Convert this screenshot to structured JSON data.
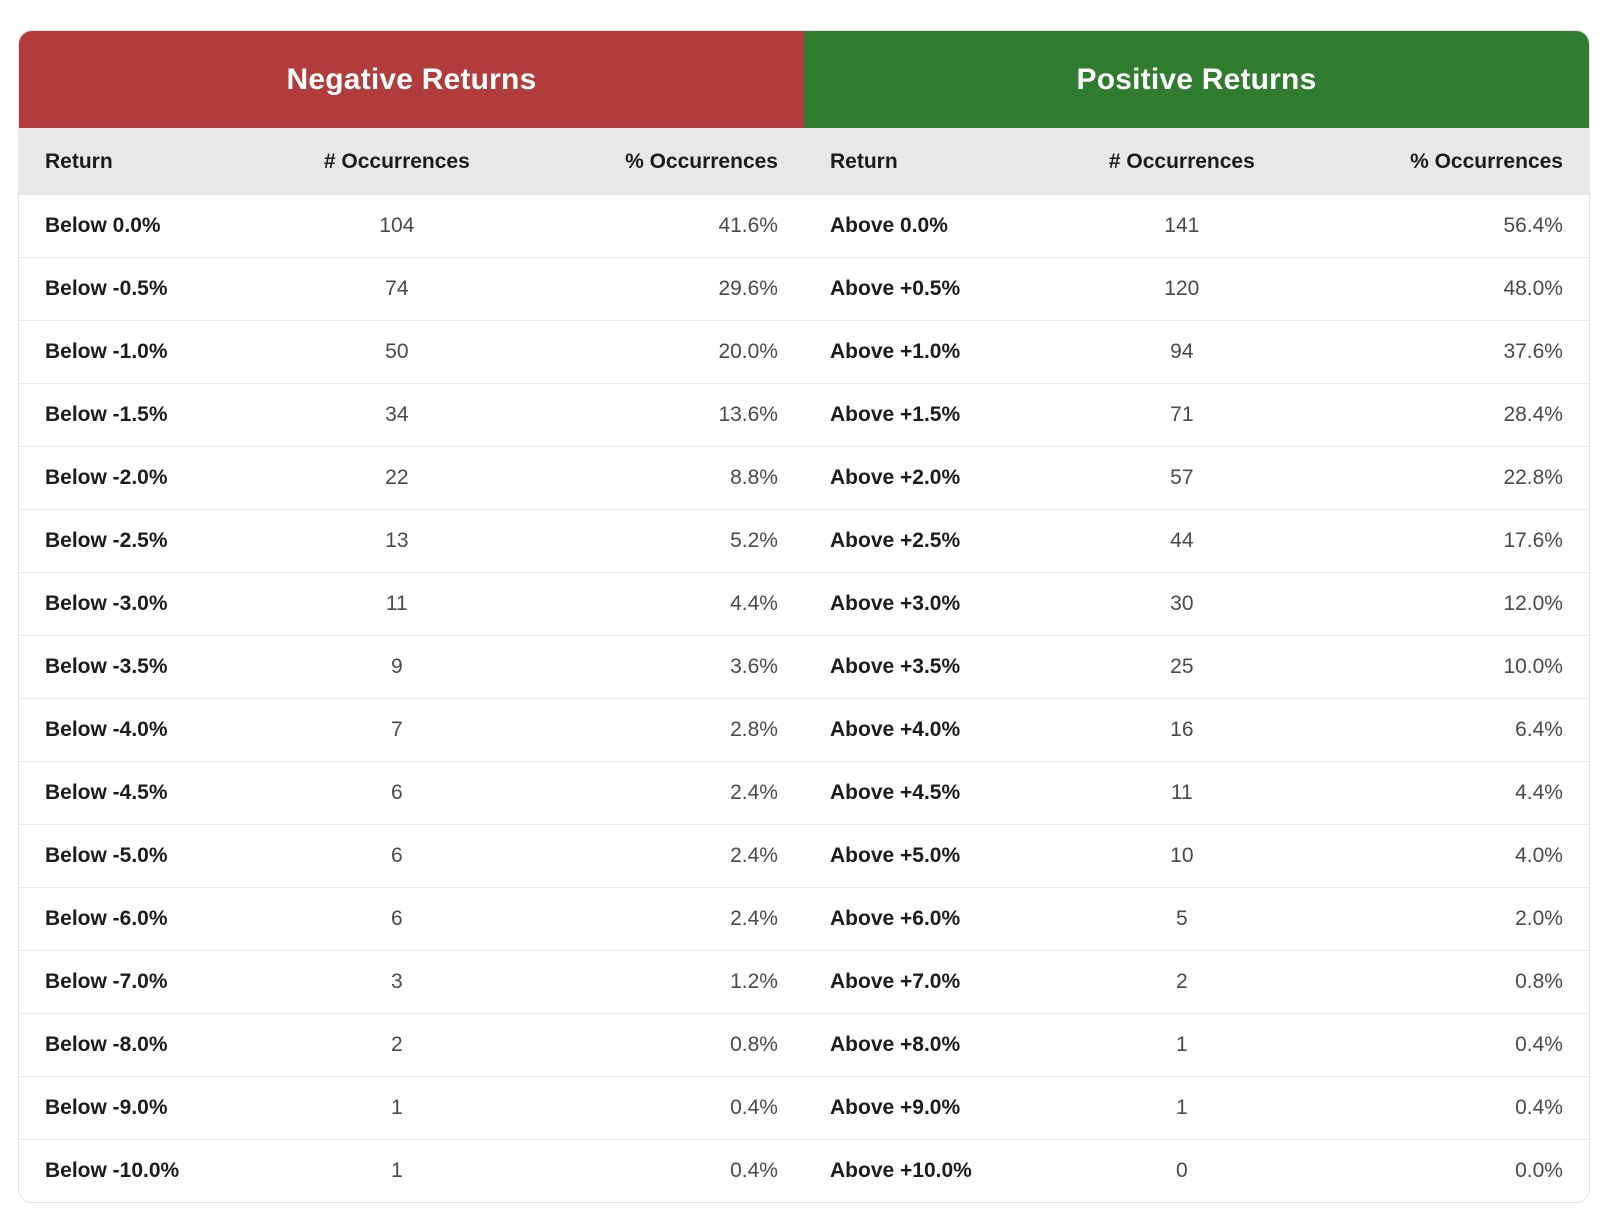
{
  "colors": {
    "negative_header": "#b23c3c",
    "positive_header": "#2f7c2f",
    "subheader_bg": "#e8e8e8",
    "label_text": "#1c1c1e",
    "value_text": "#4a4a4a"
  },
  "chart_data": [
    {
      "type": "table",
      "id": "negative",
      "title": "Negative Returns",
      "header_color": "#b23c3c",
      "columns": [
        "Return",
        "# Occurrences",
        "% Occurrences"
      ],
      "rows": [
        [
          "Below 0.0%",
          104,
          "41.6%"
        ],
        [
          "Below -0.5%",
          74,
          "29.6%"
        ],
        [
          "Below -1.0%",
          50,
          "20.0%"
        ],
        [
          "Below -1.5%",
          34,
          "13.6%"
        ],
        [
          "Below -2.0%",
          22,
          "8.8%"
        ],
        [
          "Below -2.5%",
          13,
          "5.2%"
        ],
        [
          "Below -3.0%",
          11,
          "4.4%"
        ],
        [
          "Below -3.5%",
          9,
          "3.6%"
        ],
        [
          "Below -4.0%",
          7,
          "2.8%"
        ],
        [
          "Below -4.5%",
          6,
          "2.4%"
        ],
        [
          "Below -5.0%",
          6,
          "2.4%"
        ],
        [
          "Below -6.0%",
          6,
          "2.4%"
        ],
        [
          "Below -7.0%",
          3,
          "1.2%"
        ],
        [
          "Below -8.0%",
          2,
          "0.8%"
        ],
        [
          "Below -9.0%",
          1,
          "0.4%"
        ],
        [
          "Below -10.0%",
          1,
          "0.4%"
        ]
      ]
    },
    {
      "type": "table",
      "id": "positive",
      "title": "Positive Returns",
      "header_color": "#2f7c2f",
      "columns": [
        "Return",
        "# Occurrences",
        "% Occurrences"
      ],
      "rows": [
        [
          "Above 0.0%",
          141,
          "56.4%"
        ],
        [
          "Above +0.5%",
          120,
          "48.0%"
        ],
        [
          "Above +1.0%",
          94,
          "37.6%"
        ],
        [
          "Above +1.5%",
          71,
          "28.4%"
        ],
        [
          "Above +2.0%",
          57,
          "22.8%"
        ],
        [
          "Above +2.5%",
          44,
          "17.6%"
        ],
        [
          "Above +3.0%",
          30,
          "12.0%"
        ],
        [
          "Above +3.5%",
          25,
          "10.0%"
        ],
        [
          "Above +4.0%",
          16,
          "6.4%"
        ],
        [
          "Above +4.5%",
          11,
          "4.4%"
        ],
        [
          "Above +5.0%",
          10,
          "4.0%"
        ],
        [
          "Above +6.0%",
          5,
          "2.0%"
        ],
        [
          "Above +7.0%",
          2,
          "0.8%"
        ],
        [
          "Above +8.0%",
          1,
          "0.4%"
        ],
        [
          "Above +9.0%",
          1,
          "0.4%"
        ],
        [
          "Above +10.0%",
          0,
          "0.0%"
        ]
      ]
    }
  ]
}
